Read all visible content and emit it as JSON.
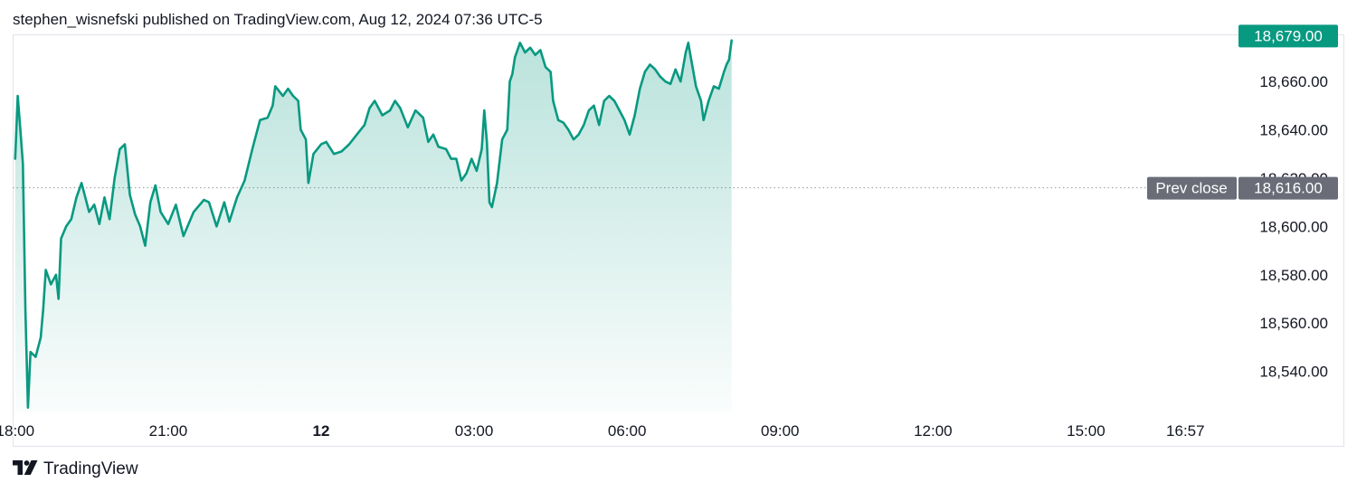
{
  "header": {
    "attribution": "stephen_wisnefski published on TradingView.com, Aug 12, 2024 07:36 UTC-5"
  },
  "footer": {
    "brand": "TradingView",
    "logo_icon": "tradingview-logo-icon"
  },
  "colors": {
    "line": "#089981",
    "fill_top": "#089981",
    "last_badge": "#089981",
    "prev_badge": "#6a6d78",
    "text": "#131722",
    "dots": "#9598a1"
  },
  "chart_data": {
    "type": "area",
    "title": "",
    "xlabel": "",
    "ylabel": "",
    "x_ticks": [
      {
        "label": "18:00",
        "hours": 0,
        "bold": false
      },
      {
        "label": "21:00",
        "hours": 3,
        "bold": false
      },
      {
        "label": "12",
        "hours": 6,
        "bold": true
      },
      {
        "label": "03:00",
        "hours": 9,
        "bold": false
      },
      {
        "label": "06:00",
        "hours": 12,
        "bold": false
      },
      {
        "label": "09:00",
        "hours": 15,
        "bold": false
      },
      {
        "label": "12:00",
        "hours": 18,
        "bold": false
      },
      {
        "label": "15:00",
        "hours": 21,
        "bold": false
      },
      {
        "label": "16:57",
        "hours": 22.95,
        "bold": false
      }
    ],
    "y_ticks": [
      "18,540.00",
      "18,560.00",
      "18,580.00",
      "18,600.00",
      "18,620.00",
      "18,640.00",
      "18,660.00"
    ],
    "y_tick_values": [
      18540,
      18560,
      18580,
      18600,
      18620,
      18640,
      18660
    ],
    "ylim": [
      18523,
      18679.5
    ],
    "xlim_hours": [
      -0.05,
      23.92
    ],
    "last_price": {
      "label": "18,679.00",
      "value": 18679
    },
    "prev_close": {
      "caption": "Prev close",
      "label": "18,616.00",
      "value": 18616
    },
    "series": [
      {
        "values": [
          [
            0.0,
            18628
          ],
          [
            0.05,
            18654
          ],
          [
            0.1,
            18640
          ],
          [
            0.15,
            18626
          ],
          [
            0.2,
            18565
          ],
          [
            0.25,
            18525
          ],
          [
            0.3,
            18548
          ],
          [
            0.4,
            18546
          ],
          [
            0.5,
            18554
          ],
          [
            0.55,
            18566
          ],
          [
            0.6,
            18582
          ],
          [
            0.7,
            18576
          ],
          [
            0.8,
            18580
          ],
          [
            0.85,
            18570
          ],
          [
            0.9,
            18595
          ],
          [
            1.0,
            18600
          ],
          [
            1.1,
            18603
          ],
          [
            1.2,
            18612
          ],
          [
            1.3,
            18618
          ],
          [
            1.45,
            18606
          ],
          [
            1.55,
            18609
          ],
          [
            1.65,
            18601
          ],
          [
            1.75,
            18612
          ],
          [
            1.85,
            18603
          ],
          [
            1.95,
            18620
          ],
          [
            2.05,
            18632
          ],
          [
            2.15,
            18634
          ],
          [
            2.25,
            18613
          ],
          [
            2.35,
            18605
          ],
          [
            2.45,
            18600
          ],
          [
            2.55,
            18592
          ],
          [
            2.65,
            18610
          ],
          [
            2.75,
            18617
          ],
          [
            2.85,
            18606
          ],
          [
            3.0,
            18601
          ],
          [
            3.15,
            18609
          ],
          [
            3.3,
            18596
          ],
          [
            3.5,
            18606
          ],
          [
            3.7,
            18611
          ],
          [
            3.8,
            18610
          ],
          [
            3.95,
            18600
          ],
          [
            4.1,
            18610
          ],
          [
            4.2,
            18602
          ],
          [
            4.35,
            18612
          ],
          [
            4.5,
            18619
          ],
          [
            4.65,
            18632
          ],
          [
            4.8,
            18644
          ],
          [
            4.95,
            18645
          ],
          [
            5.05,
            18650
          ],
          [
            5.1,
            18658
          ],
          [
            5.25,
            18654
          ],
          [
            5.35,
            18657
          ],
          [
            5.45,
            18654
          ],
          [
            5.55,
            18652
          ],
          [
            5.6,
            18640
          ],
          [
            5.7,
            18636
          ],
          [
            5.75,
            18618
          ],
          [
            5.85,
            18630
          ],
          [
            6.0,
            18634
          ],
          [
            6.1,
            18635
          ],
          [
            6.25,
            18630
          ],
          [
            6.4,
            18631
          ],
          [
            6.55,
            18634
          ],
          [
            6.7,
            18638
          ],
          [
            6.85,
            18642
          ],
          [
            6.95,
            18649
          ],
          [
            7.05,
            18652
          ],
          [
            7.2,
            18646
          ],
          [
            7.35,
            18648
          ],
          [
            7.45,
            18652
          ],
          [
            7.55,
            18649
          ],
          [
            7.7,
            18641
          ],
          [
            7.85,
            18648
          ],
          [
            8.0,
            18645
          ],
          [
            8.1,
            18635
          ],
          [
            8.2,
            18638
          ],
          [
            8.3,
            18633
          ],
          [
            8.45,
            18632
          ],
          [
            8.55,
            18628
          ],
          [
            8.65,
            18628
          ],
          [
            8.75,
            18619
          ],
          [
            8.85,
            18622
          ],
          [
            8.95,
            18628
          ],
          [
            9.05,
            18623
          ],
          [
            9.15,
            18632
          ],
          [
            9.2,
            18648
          ],
          [
            9.25,
            18635
          ],
          [
            9.3,
            18610
          ],
          [
            9.35,
            18608
          ],
          [
            9.45,
            18618
          ],
          [
            9.55,
            18636
          ],
          [
            9.65,
            18640
          ],
          [
            9.7,
            18660
          ],
          [
            9.75,
            18663
          ],
          [
            9.8,
            18670
          ],
          [
            9.9,
            18676
          ],
          [
            10.0,
            18672
          ],
          [
            10.1,
            18674
          ],
          [
            10.2,
            18671
          ],
          [
            10.3,
            18673
          ],
          [
            10.4,
            18666
          ],
          [
            10.5,
            18664
          ],
          [
            10.55,
            18652
          ],
          [
            10.65,
            18644
          ],
          [
            10.75,
            18643
          ],
          [
            10.85,
            18640
          ],
          [
            10.95,
            18636
          ],
          [
            11.05,
            18638
          ],
          [
            11.15,
            18642
          ],
          [
            11.25,
            18648
          ],
          [
            11.35,
            18650
          ],
          [
            11.45,
            18642
          ],
          [
            11.55,
            18652
          ],
          [
            11.65,
            18654
          ],
          [
            11.75,
            18652
          ],
          [
            11.85,
            18648
          ],
          [
            11.95,
            18644
          ],
          [
            12.05,
            18638
          ],
          [
            12.15,
            18646
          ],
          [
            12.25,
            18657
          ],
          [
            12.35,
            18664
          ],
          [
            12.45,
            18667
          ],
          [
            12.55,
            18665
          ],
          [
            12.65,
            18662
          ],
          [
            12.75,
            18660
          ],
          [
            12.85,
            18659
          ],
          [
            12.95,
            18665
          ],
          [
            13.05,
            18660
          ],
          [
            13.15,
            18672
          ],
          [
            13.2,
            18676
          ],
          [
            13.25,
            18670
          ],
          [
            13.35,
            18658
          ],
          [
            13.45,
            18652
          ],
          [
            13.5,
            18644
          ],
          [
            13.6,
            18652
          ],
          [
            13.7,
            18658
          ],
          [
            13.8,
            18657
          ],
          [
            13.9,
            18664
          ],
          [
            13.95,
            18667
          ],
          [
            14.0,
            18669
          ],
          [
            14.05,
            18677
          ]
        ]
      }
    ]
  }
}
